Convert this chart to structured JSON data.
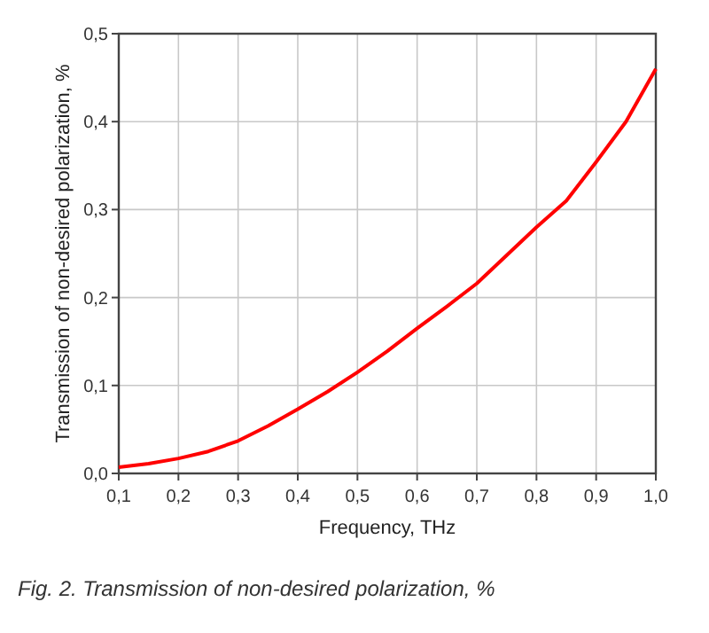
{
  "chart_data": {
    "type": "line",
    "xlabel": "Frequency, THz",
    "ylabel": "Transmission of non-desired polarization, %",
    "annotations": [
      "Fig. 2. Transmission of non-desired polarization, %"
    ],
    "x": [
      0.1,
      0.15,
      0.2,
      0.25,
      0.3,
      0.35,
      0.4,
      0.45,
      0.5,
      0.55,
      0.6,
      0.65,
      0.7,
      0.75,
      0.8,
      0.85,
      0.9,
      0.95,
      1.0
    ],
    "series": [
      {
        "color": "#ff0000",
        "values": [
          0.007,
          0.011,
          0.017,
          0.025,
          0.037,
          0.054,
          0.073,
          0.093,
          0.115,
          0.139,
          0.165,
          0.19,
          0.216,
          0.248,
          0.28,
          0.31,
          0.354,
          0.4,
          0.46
        ]
      }
    ],
    "xlim": [
      0.1,
      1.0
    ],
    "ylim": [
      0,
      0.5
    ],
    "xticks": [
      {
        "value": 0.1,
        "label": "0,1"
      },
      {
        "value": 0.2,
        "label": "0,2"
      },
      {
        "value": 0.3,
        "label": "0,3"
      },
      {
        "value": 0.4,
        "label": "0,4"
      },
      {
        "value": 0.5,
        "label": "0,5"
      },
      {
        "value": 0.6,
        "label": "0,6"
      },
      {
        "value": 0.7,
        "label": "0,7"
      },
      {
        "value": 0.8,
        "label": "0,8"
      },
      {
        "value": 0.9,
        "label": "0,9"
      },
      {
        "value": 1.0,
        "label": "1,0"
      }
    ],
    "yticks": [
      {
        "value": 0,
        "label": "0,0"
      },
      {
        "value": 0.1,
        "label": "0,1"
      },
      {
        "value": 0.2,
        "label": "0,2"
      },
      {
        "value": 0.3,
        "label": "0,3"
      },
      {
        "value": 0.4,
        "label": "0,4"
      },
      {
        "value": 0.5,
        "label": "0,5"
      }
    ],
    "grid": true,
    "marker": "none",
    "line_style": "solid"
  }
}
